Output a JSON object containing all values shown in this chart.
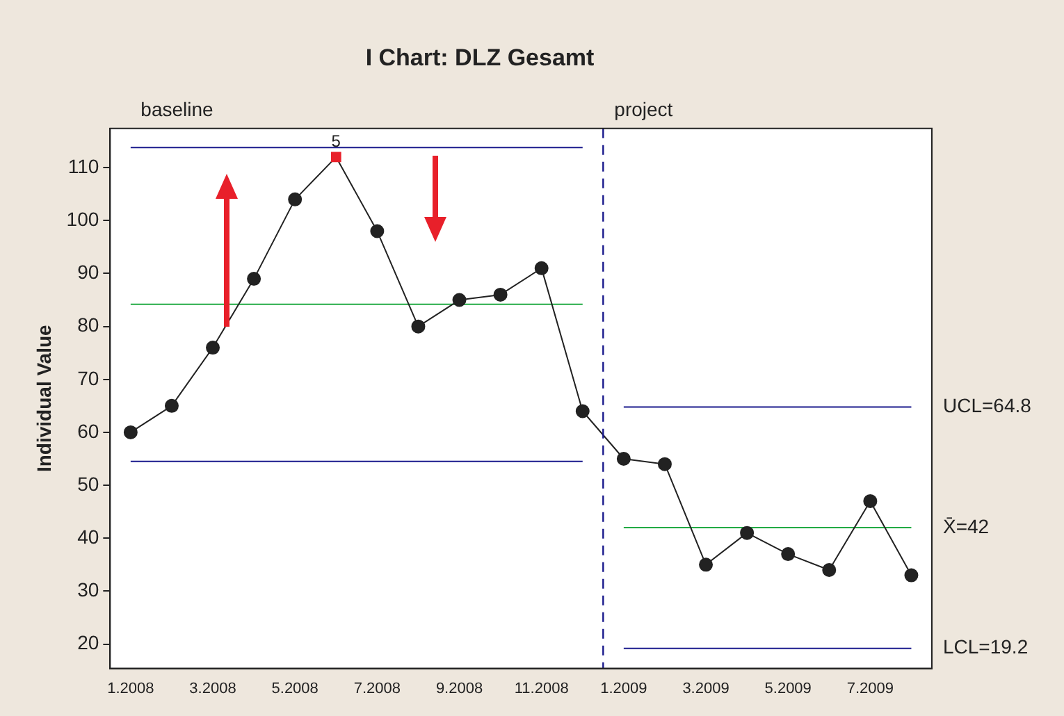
{
  "chart_data": {
    "type": "line",
    "title": "I Chart: DLZ Gesamt",
    "ylabel": "Individual Value",
    "categories": [
      "1.2008",
      null,
      "3.2008",
      null,
      "5.2008",
      null,
      "7.2008",
      null,
      "9.2008",
      null,
      "11.2008",
      null,
      "1.2009",
      null,
      "3.2009",
      null,
      "5.2009",
      null,
      "7.2009",
      null
    ],
    "series": [
      {
        "color": "#222222",
        "marker": "circle",
        "colors": [
          "#222222",
          "#222222",
          "#222222",
          "#222222",
          "#222222",
          "#e8202a",
          "#222222",
          "#222222",
          "#222222",
          "#222222",
          "#222222",
          "#222222",
          "#222222",
          "#222222",
          "#222222",
          "#222222",
          "#222222",
          "#222222",
          "#222222",
          "#222222"
        ],
        "values": [
          60,
          65,
          76,
          89,
          104,
          112,
          98,
          80,
          85,
          86,
          91,
          64,
          55,
          54,
          35,
          41,
          37,
          34,
          47,
          33
        ]
      },
      {
        "color": "#1a1a8c",
        "marker": "none",
        "values": [
          113.8,
          113.8,
          113.8,
          113.8,
          113.8,
          113.8,
          113.8,
          113.8,
          113.8,
          113.8,
          113.8,
          113.8,
          null,
          null,
          null,
          null,
          null,
          null,
          null,
          null
        ]
      },
      {
        "color": "#22aa44",
        "marker": "none",
        "values": [
          84.2,
          84.2,
          84.2,
          84.2,
          84.2,
          84.2,
          84.2,
          84.2,
          84.2,
          84.2,
          84.2,
          84.2,
          null,
          null,
          null,
          null,
          null,
          null,
          null,
          null
        ]
      },
      {
        "color": "#1a1a8c",
        "marker": "none",
        "values": [
          54.5,
          54.5,
          54.5,
          54.5,
          54.5,
          54.5,
          54.5,
          54.5,
          54.5,
          54.5,
          54.5,
          54.5,
          null,
          null,
          null,
          null,
          null,
          null,
          null,
          null
        ]
      },
      {
        "name": "UCL=64.8",
        "color": "#1a1a8c",
        "marker": "none",
        "values": [
          null,
          null,
          null,
          null,
          null,
          null,
          null,
          null,
          null,
          null,
          null,
          null,
          64.8,
          64.8,
          64.8,
          64.8,
          64.8,
          64.8,
          64.8,
          64.8
        ]
      },
      {
        "name": "X̄=42",
        "color": "#22aa44",
        "marker": "none",
        "values": [
          null,
          null,
          null,
          null,
          null,
          null,
          null,
          null,
          null,
          null,
          null,
          null,
          42,
          42,
          42,
          42,
          42,
          42,
          42,
          42
        ]
      },
      {
        "name": "LCL=19.2",
        "color": "#1a1a8c",
        "marker": "none",
        "values": [
          null,
          null,
          null,
          null,
          null,
          null,
          null,
          null,
          null,
          null,
          null,
          null,
          19.2,
          19.2,
          19.2,
          19.2,
          19.2,
          19.2,
          19.2,
          19.2
        ]
      }
    ],
    "ylim": [
      15.4,
      117.4
    ],
    "yticks": [
      20,
      30,
      40,
      50,
      60,
      70,
      80,
      90,
      100,
      110
    ],
    "ref_lines": [
      {
        "axis": "x",
        "value": "1.2009",
        "color": "#1a1a8c",
        "line_style": "dashed"
      }
    ],
    "annotations": [
      "baseline",
      "project",
      "5"
    ],
    "grid": false,
    "legend": false
  }
}
